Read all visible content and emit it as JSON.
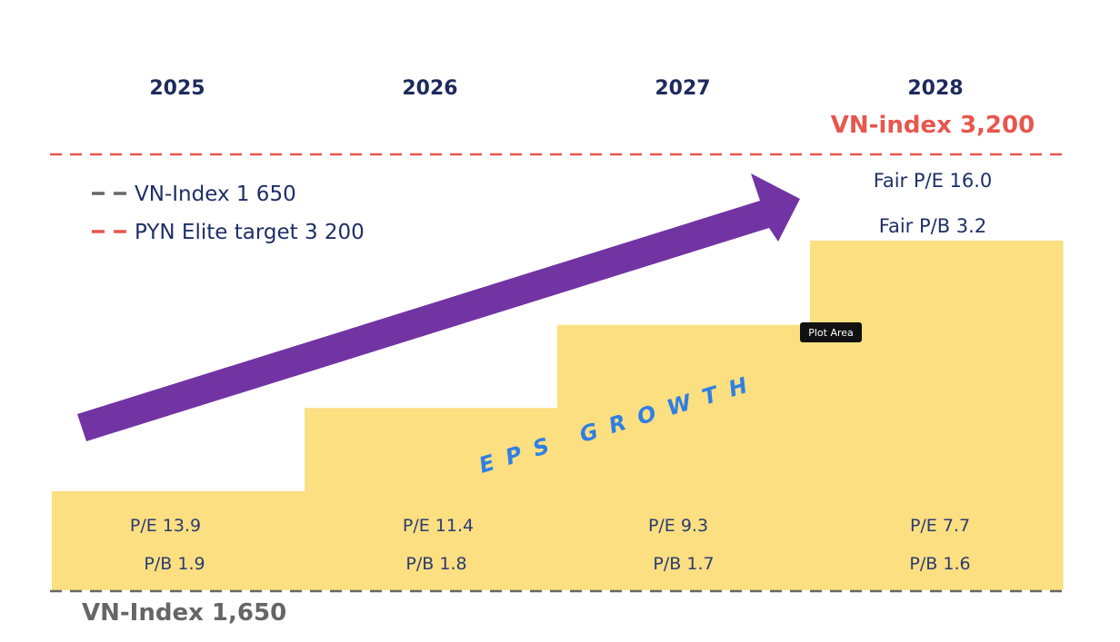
{
  "chart_data": {
    "type": "bar",
    "categories": [
      "2025",
      "2026",
      "2027",
      "2028"
    ],
    "values": [
      1.0,
      1.84,
      2.68,
      3.53
    ],
    "value_note": "relative EPS step heights (estimated, unlabeled)",
    "ylim": [
      0,
      3.53
    ],
    "target_label": "VN-index 3,200",
    "base_label": "VN-Index 1,650",
    "legend": [
      {
        "text": "VN-Index 1 650",
        "color": "#666666"
      },
      {
        "text": "PYN Elite target 3 200",
        "color": "#e8564d"
      }
    ],
    "fair": [
      "Fair P/E 16.0",
      "Fair P/B 3.2"
    ],
    "pe": [
      "P/E 13.9",
      "P/E 11.4",
      "P/E 9.3",
      "P/E 7.7"
    ],
    "pb": [
      "P/B 1.9",
      "P/B 1.8",
      "P/B 1.7",
      "P/B 1.6"
    ],
    "annotation": "EPS GROWTH",
    "tooltip": "Plot Area"
  },
  "colors": {
    "bar": "#fbdf80",
    "arrow": "#7234a3",
    "target": "#e8564d",
    "base": "#666666",
    "year": "#1d2b5c",
    "text": "#1e2f66",
    "eps": "#2f7fe6",
    "tooltip": "#111111"
  }
}
